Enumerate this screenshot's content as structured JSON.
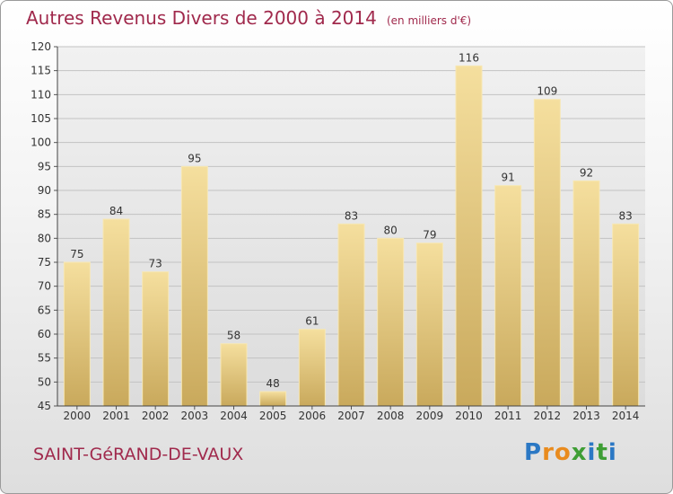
{
  "title": "Autres Revenus Divers de 2000 à 2014",
  "subtitle": "(en milliers d'€)",
  "commune": "SAINT-GéRAND-DE-VAUX",
  "logo": {
    "text": "Proxiti",
    "colors": [
      "#2b78c4",
      "#e98b1e",
      "#3f9e35"
    ]
  },
  "chart_data": {
    "type": "bar",
    "title": "Autres Revenus Divers de 2000 à 2014",
    "subtitle": "(en milliers d'€)",
    "categories": [
      "2000",
      "2001",
      "2002",
      "2003",
      "2004",
      "2005",
      "2006",
      "2007",
      "2008",
      "2009",
      "2010",
      "2011",
      "2012",
      "2013",
      "2014"
    ],
    "values": [
      75,
      84,
      73,
      95,
      58,
      48,
      61,
      83,
      80,
      79,
      116,
      91,
      109,
      92,
      83
    ],
    "ylim": [
      45,
      120
    ],
    "yticks": [
      45,
      50,
      55,
      60,
      65,
      70,
      75,
      80,
      85,
      90,
      95,
      100,
      105,
      110,
      115,
      120
    ],
    "grid": true,
    "bar_color": "#e6c878",
    "title_color": "#a0294c"
  }
}
